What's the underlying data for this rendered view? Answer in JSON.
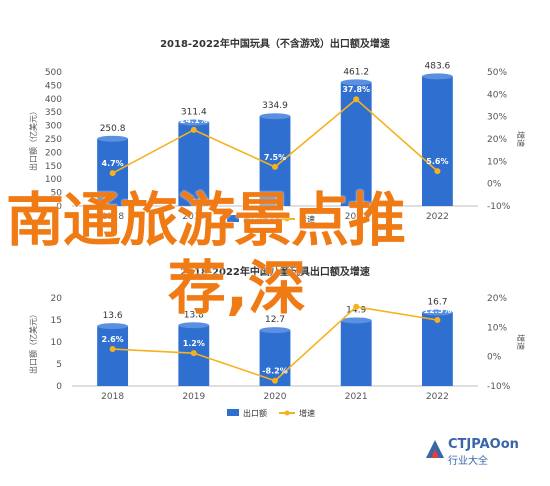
{
  "chart_data": [
    {
      "type": "bar",
      "title": "2018-2022年中国玩具（不含游戏）出口额及增速",
      "ylabel": "出口额（亿美元）",
      "y2label": "增速",
      "categories": [
        "2018",
        "2019",
        "2020",
        "2021",
        "2022"
      ],
      "ylim": [
        0,
        500
      ],
      "yticks": [
        0,
        50,
        100,
        150,
        200,
        250,
        300,
        350,
        400,
        450,
        500
      ],
      "y2lim": [
        -10,
        50
      ],
      "y2ticks": [
        "-10%",
        "0%",
        "10%",
        "20%",
        "30%",
        "40%",
        "50%"
      ],
      "series": [
        {
          "name": "出口额",
          "kind": "bar",
          "color": "#2f6fd0",
          "values": [
            250.8,
            311.4,
            334.9,
            461.2,
            483.6
          ],
          "labels": [
            "250.8",
            "311.4",
            "334.9",
            "461.2",
            "483.6"
          ]
        },
        {
          "name": "增速",
          "kind": "line",
          "color": "#f5b21d",
          "values": [
            4.7,
            24.1,
            7.5,
            37.8,
            5.6
          ],
          "labels": [
            "4.7%",
            "24.1%",
            "7.5%",
            "37.8%",
            "5.6%"
          ]
        }
      ],
      "legend": "bottom"
    },
    {
      "type": "bar",
      "title": "2018-2022年中国儿童玩具出口额及增速",
      "ylabel": "出口额（亿美元）",
      "y2label": "增速",
      "categories": [
        "2018",
        "2019",
        "2020",
        "2021",
        "2022"
      ],
      "ylim": [
        0,
        20
      ],
      "yticks": [
        0,
        5,
        10,
        15,
        20
      ],
      "y2lim": [
        -10,
        20
      ],
      "y2ticks": [
        "-10%",
        "0%",
        "10%",
        "20%"
      ],
      "series": [
        {
          "name": "出口额",
          "kind": "bar",
          "color": "#2f6fd0",
          "values": [
            13.6,
            13.8,
            12.7,
            14.9,
            16.7
          ],
          "labels": [
            "13.6",
            "13.8",
            "12.7",
            "14.9",
            "16.7"
          ]
        },
        {
          "name": "增速",
          "kind": "line",
          "color": "#f5b21d",
          "values": [
            2.6,
            1.2,
            -8.2,
            17.0,
            12.5
          ],
          "labels": [
            "2.6%",
            "1.2%",
            "-8.2%",
            "17.0%",
            "12.5%"
          ]
        }
      ],
      "legend": "bottom"
    }
  ],
  "overlay": {
    "line1": "南通旅游景点推",
    "line2": "荐,深"
  },
  "logo": {
    "brand": "CTJPAOon",
    "sub": "行业大全"
  },
  "colors": {
    "overlay_text": "#f07a14",
    "bar": "#2f6fd0",
    "line": "#f5b21d",
    "axis_text": "#555555"
  }
}
